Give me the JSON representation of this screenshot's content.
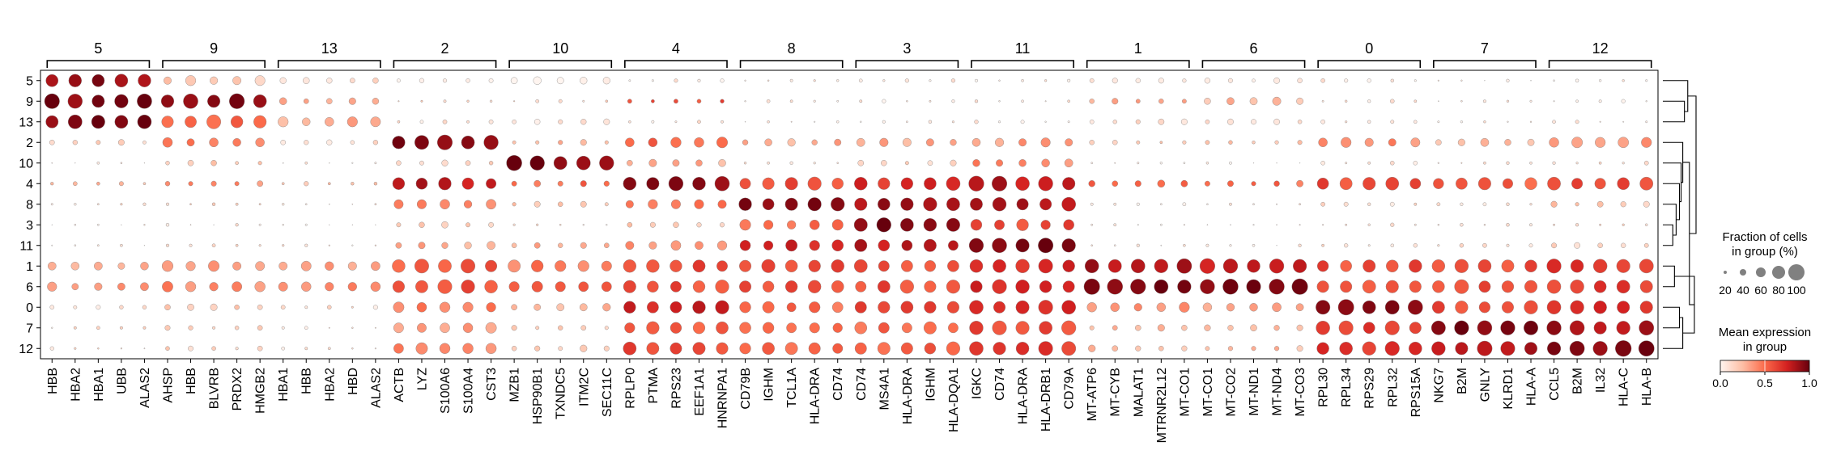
{
  "chart_data": {
    "type": "dotplot",
    "groups_y": [
      "5",
      "9",
      "13",
      "2",
      "10",
      "4",
      "8",
      "3",
      "11",
      "1",
      "6",
      "0",
      "7",
      "12"
    ],
    "gene_groups": [
      {
        "label": "5",
        "genes": [
          "HBB",
          "HBA2",
          "HBA1",
          "UBB",
          "ALAS2"
        ]
      },
      {
        "label": "9",
        "genes": [
          "AHSP",
          "HBB",
          "BLVRB",
          "PRDX2",
          "HMGB2"
        ]
      },
      {
        "label": "13",
        "genes": [
          "HBA1",
          "HBB",
          "HBA2",
          "HBD",
          "ALAS2"
        ]
      },
      {
        "label": "2",
        "genes": [
          "ACTB",
          "LYZ",
          "S100A6",
          "S100A4",
          "CST3"
        ]
      },
      {
        "label": "10",
        "genes": [
          "MZB1",
          "HSP90B1",
          "TXNDC5",
          "ITM2C",
          "SEC11C"
        ]
      },
      {
        "label": "4",
        "genes": [
          "RPLP0",
          "PTMA",
          "RPS23",
          "EEF1A1",
          "HNRNPA1"
        ]
      },
      {
        "label": "8",
        "genes": [
          "CD79B",
          "IGHM",
          "TCL1A",
          "HLA-DRA",
          "CD74"
        ]
      },
      {
        "label": "3",
        "genes": [
          "CD74",
          "MS4A1",
          "HLA-DRA",
          "IGHM",
          "HLA-DQA1"
        ]
      },
      {
        "label": "11",
        "genes": [
          "IGKC",
          "CD74",
          "HLA-DRA",
          "HLA-DRB1",
          "CD79A"
        ]
      },
      {
        "label": "1",
        "genes": [
          "MT-ATP6",
          "MT-CYB",
          "MALAT1",
          "MTRNR2L12",
          "MT-CO1"
        ]
      },
      {
        "label": "6",
        "genes": [
          "MT-CO1",
          "MT-CO2",
          "MT-ND1",
          "MT-ND4",
          "MT-CO3"
        ]
      },
      {
        "label": "0",
        "genes": [
          "RPL30",
          "RPL34",
          "RPS29",
          "RPL32",
          "RPS15A"
        ]
      },
      {
        "label": "7",
        "genes": [
          "NKG7",
          "B2M",
          "GNLY",
          "KLRD1",
          "HLA-A"
        ]
      },
      {
        "label": "12",
        "genes": [
          "CCL5",
          "B2M",
          "IL32",
          "HLA-C",
          "HLA-B"
        ]
      }
    ],
    "block_fraction": [
      [
        0.85,
        0.55,
        0.35,
        0.2,
        0.45,
        0.15,
        0.12,
        0.18,
        0.15,
        0.3,
        0.3,
        0.2,
        0.12,
        0.15
      ],
      [
        0.85,
        0.85,
        0.4,
        0.15,
        0.15,
        0.25,
        0.12,
        0.18,
        0.15,
        0.35,
        0.45,
        0.2,
        0.12,
        0.15
      ],
      [
        0.85,
        0.8,
        0.55,
        0.2,
        0.3,
        0.15,
        0.12,
        0.18,
        0.15,
        0.3,
        0.3,
        0.2,
        0.12,
        0.15
      ],
      [
        0.3,
        0.55,
        0.25,
        0.85,
        0.3,
        0.6,
        0.4,
        0.45,
        0.5,
        0.25,
        0.25,
        0.55,
        0.45,
        0.6
      ],
      [
        0.08,
        0.3,
        0.1,
        0.3,
        0.9,
        0.4,
        0.15,
        0.3,
        0.5,
        0.1,
        0.1,
        0.2,
        0.15,
        0.2
      ],
      [
        0.2,
        0.35,
        0.2,
        0.7,
        0.4,
        0.85,
        0.75,
        0.8,
        0.85,
        0.4,
        0.35,
        0.75,
        0.7,
        0.75
      ],
      [
        0.1,
        0.15,
        0.1,
        0.55,
        0.3,
        0.55,
        0.8,
        0.75,
        0.8,
        0.15,
        0.15,
        0.2,
        0.2,
        0.3
      ],
      [
        0.1,
        0.12,
        0.1,
        0.35,
        0.15,
        0.35,
        0.6,
        0.8,
        0.65,
        0.1,
        0.1,
        0.15,
        0.15,
        0.2
      ],
      [
        0.1,
        0.15,
        0.1,
        0.45,
        0.35,
        0.55,
        0.65,
        0.7,
        0.85,
        0.1,
        0.1,
        0.2,
        0.2,
        0.3
      ],
      [
        0.5,
        0.6,
        0.6,
        0.8,
        0.7,
        0.75,
        0.75,
        0.75,
        0.8,
        0.9,
        0.85,
        0.75,
        0.8,
        0.8
      ],
      [
        0.5,
        0.6,
        0.6,
        0.8,
        0.7,
        0.75,
        0.75,
        0.75,
        0.8,
        0.9,
        0.9,
        0.75,
        0.8,
        0.8
      ],
      [
        0.2,
        0.35,
        0.2,
        0.65,
        0.4,
        0.8,
        0.65,
        0.75,
        0.8,
        0.55,
        0.55,
        0.9,
        0.75,
        0.8
      ],
      [
        0.15,
        0.25,
        0.15,
        0.6,
        0.3,
        0.7,
        0.65,
        0.7,
        0.8,
        0.35,
        0.35,
        0.8,
        0.85,
        0.85
      ],
      [
        0.15,
        0.25,
        0.15,
        0.65,
        0.35,
        0.75,
        0.7,
        0.75,
        0.8,
        0.35,
        0.35,
        0.8,
        0.85,
        0.9
      ]
    ],
    "block_expression": [
      [
        0.9,
        0.2,
        0.12,
        0.05,
        0.04,
        0.05,
        0.03,
        0.04,
        0.04,
        0.08,
        0.08,
        0.05,
        0.04,
        0.04
      ],
      [
        0.95,
        0.9,
        0.35,
        0.15,
        0.15,
        0.6,
        0.05,
        0.05,
        0.05,
        0.3,
        0.25,
        0.08,
        0.05,
        0.05
      ],
      [
        0.95,
        0.55,
        0.3,
        0.08,
        0.08,
        0.08,
        0.05,
        0.05,
        0.05,
        0.1,
        0.1,
        0.05,
        0.04,
        0.05
      ],
      [
        0.15,
        0.45,
        0.1,
        0.95,
        0.3,
        0.5,
        0.3,
        0.3,
        0.35,
        0.2,
        0.2,
        0.4,
        0.25,
        0.35
      ],
      [
        0.04,
        0.2,
        0.04,
        0.15,
        0.95,
        0.3,
        0.08,
        0.15,
        0.4,
        0.05,
        0.05,
        0.08,
        0.08,
        0.1
      ],
      [
        0.25,
        0.4,
        0.25,
        0.8,
        0.5,
        0.9,
        0.6,
        0.7,
        0.8,
        0.5,
        0.5,
        0.6,
        0.55,
        0.6
      ],
      [
        0.1,
        0.15,
        0.1,
        0.45,
        0.2,
        0.45,
        0.95,
        0.85,
        0.8,
        0.08,
        0.08,
        0.1,
        0.1,
        0.2
      ],
      [
        0.05,
        0.08,
        0.05,
        0.2,
        0.08,
        0.2,
        0.5,
        0.95,
        0.6,
        0.05,
        0.05,
        0.08,
        0.08,
        0.1
      ],
      [
        0.05,
        0.1,
        0.05,
        0.3,
        0.3,
        0.4,
        0.75,
        0.8,
        0.95,
        0.05,
        0.05,
        0.1,
        0.1,
        0.15
      ],
      [
        0.3,
        0.35,
        0.35,
        0.55,
        0.45,
        0.6,
        0.6,
        0.6,
        0.7,
        0.85,
        0.75,
        0.6,
        0.6,
        0.65
      ],
      [
        0.35,
        0.4,
        0.4,
        0.6,
        0.5,
        0.6,
        0.6,
        0.6,
        0.7,
        0.95,
        0.95,
        0.6,
        0.6,
        0.65
      ],
      [
        0.1,
        0.2,
        0.1,
        0.45,
        0.25,
        0.75,
        0.5,
        0.6,
        0.7,
        0.35,
        0.35,
        0.95,
        0.6,
        0.7
      ],
      [
        0.1,
        0.15,
        0.1,
        0.35,
        0.2,
        0.55,
        0.45,
        0.5,
        0.6,
        0.25,
        0.25,
        0.65,
        0.95,
        0.85
      ],
      [
        0.1,
        0.15,
        0.1,
        0.4,
        0.2,
        0.6,
        0.5,
        0.55,
        0.65,
        0.25,
        0.25,
        0.7,
        0.85,
        0.95
      ]
    ],
    "dendrogram": [
      {
        "a": "1",
        "b": "6",
        "height": 0.35
      },
      {
        "a": "0",
        "b": "7",
        "height": 0.5
      },
      {
        "a": "0-7",
        "b": "12",
        "height": 0.6
      },
      {
        "a": "1-6",
        "b": "0-7-12",
        "height": 0.95
      },
      {
        "a": "3",
        "b": "11",
        "height": 0.3
      },
      {
        "a": "8",
        "b": "3-11",
        "height": 0.4
      },
      {
        "a": "4",
        "b": "8-3-11",
        "height": 0.5
      },
      {
        "a": "10",
        "b": "4-8-3-11",
        "height": 0.55
      },
      {
        "a": "2",
        "b": "10-4-8-3-11",
        "height": 0.6
      },
      {
        "a": "2-...-11",
        "b": "1-6-0-7-12",
        "height": 0.8
      },
      {
        "a": "9",
        "b": "13",
        "height": 0.65
      },
      {
        "a": "5",
        "b": "9-13",
        "height": 0.75
      },
      {
        "a": "5-9-13",
        "b": "rest",
        "height": 1.0
      }
    ],
    "size_legend": {
      "title_line1": "Fraction of cells",
      "title_line2": "in group (%)",
      "values": [
        20,
        40,
        60,
        80,
        100
      ],
      "labels": [
        "20",
        "40",
        "60",
        "80",
        "100"
      ]
    },
    "color_legend": {
      "title_line1": "Mean expression",
      "title_line2": "in group",
      "ticks": [
        0.0,
        0.5,
        1.0
      ],
      "tick_labels": [
        "0.0",
        "0.5",
        "1.0"
      ],
      "colors": [
        "#fff5f0",
        "#fdbea5",
        "#fb6a4a",
        "#d32020",
        "#67000d"
      ]
    }
  }
}
